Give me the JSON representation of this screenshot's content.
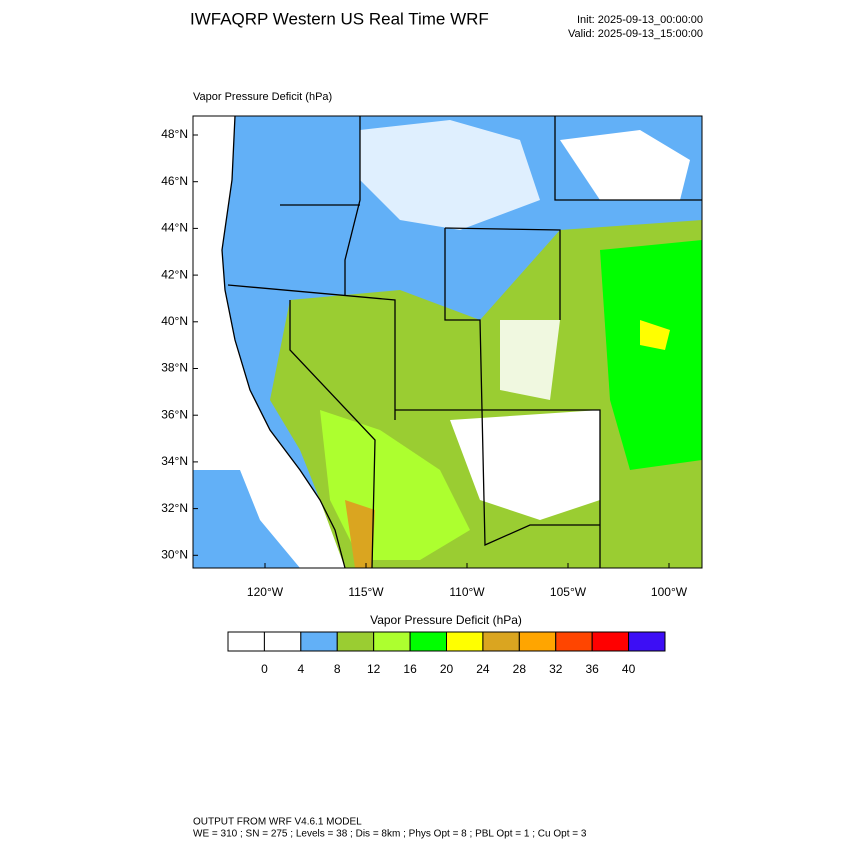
{
  "header": {
    "title": "IWFAQRP Western US Real Time WRF",
    "init": "Init: 2025-09-13_00:00:00",
    "valid": "Valid: 2025-09-13_15:00:00"
  },
  "map": {
    "label": "Vapor Pressure Deficit   (hPa)",
    "lat_ticks": [
      "48°N",
      "46°N",
      "44°N",
      "42°N",
      "40°N",
      "38°N",
      "36°N",
      "34°N",
      "32°N",
      "30°N"
    ],
    "lon_ticks": [
      "120°W",
      "115°W",
      "110°W",
      "105°W",
      "100°W"
    ]
  },
  "colorbar": {
    "title": "Vapor Pressure Deficit  (hPa)",
    "colors": [
      "#ffffff",
      "#ffffff",
      "#62b0f7",
      "#9acd32",
      "#adff2f",
      "#00ff00",
      "#ffff00",
      "#daa520",
      "#ffa500",
      "#ff4500",
      "#ff0000",
      "#3d0ef5"
    ],
    "labels": [
      "0",
      "4",
      "8",
      "12",
      "16",
      "20",
      "24",
      "28",
      "32",
      "36",
      "40"
    ]
  },
  "footer": {
    "line1": "OUTPUT FROM WRF V4.6.1 MODEL",
    "line2": "WE = 310 ; SN = 275 ; Levels = 38 ; Dis = 8km ; Phys Opt = 8 ; PBL Opt = 1 ; Cu Opt = 3"
  }
}
